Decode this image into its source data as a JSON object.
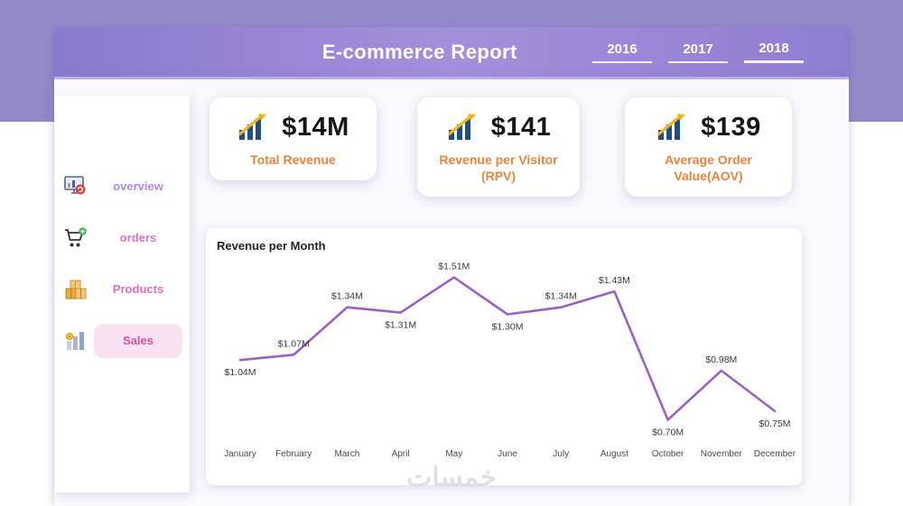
{
  "header": {
    "title": "E-commerce Report",
    "years": [
      {
        "label": "2016"
      },
      {
        "label": "2017"
      },
      {
        "label": "2018"
      }
    ]
  },
  "sidebar": {
    "items": [
      {
        "label": "overview",
        "icon": "dashboard-icon",
        "active": false
      },
      {
        "label": "orders",
        "icon": "cart-icon",
        "active": false
      },
      {
        "label": "Products",
        "icon": "products-icon",
        "active": false
      },
      {
        "label": "Sales",
        "icon": "sales-icon",
        "active": true
      }
    ]
  },
  "kpis": [
    {
      "value": "$14M",
      "label": "Total Revenue"
    },
    {
      "value": "$141",
      "label": "Revenue per Visitor (RPV)"
    },
    {
      "value": "$139",
      "label": "Average Order Value(AOV)"
    }
  ],
  "chart_data": {
    "type": "line",
    "title": "Revenue per Month",
    "categories": [
      "January",
      "February",
      "March",
      "April",
      "May",
      "June",
      "July",
      "August",
      "October",
      "November",
      "December"
    ],
    "values": [
      1.04,
      1.07,
      1.34,
      1.31,
      1.51,
      1.3,
      1.34,
      1.43,
      0.7,
      0.98,
      0.75
    ],
    "point_labels": [
      "$1.04M",
      "$1.07M",
      "$1.34M",
      "$1.31M",
      "$1.51M",
      "$1.30M",
      "$1.34M",
      "$1.43M",
      "$0.70M",
      "$0.98M",
      "$0.75M"
    ],
    "label_positions": [
      "below",
      "above",
      "above",
      "below",
      "above",
      "below",
      "above",
      "above",
      "below",
      "above",
      "below"
    ],
    "ylim": [
      0.6,
      1.6
    ],
    "grid": false,
    "legend": "none",
    "line_color": "#9d5fc2"
  },
  "watermark": {
    "text": "خمسات"
  },
  "colors": {
    "banner_purple": "#9389c8",
    "header_gradient_start": "#8a79cd",
    "header_gradient_end": "#a48fdb",
    "kpi_label_orange": "#e8833a",
    "chart_line_purple": "#9d5fc2",
    "active_item_pink": "#de4fa2",
    "active_pill_bg": "#f8e2f2"
  }
}
